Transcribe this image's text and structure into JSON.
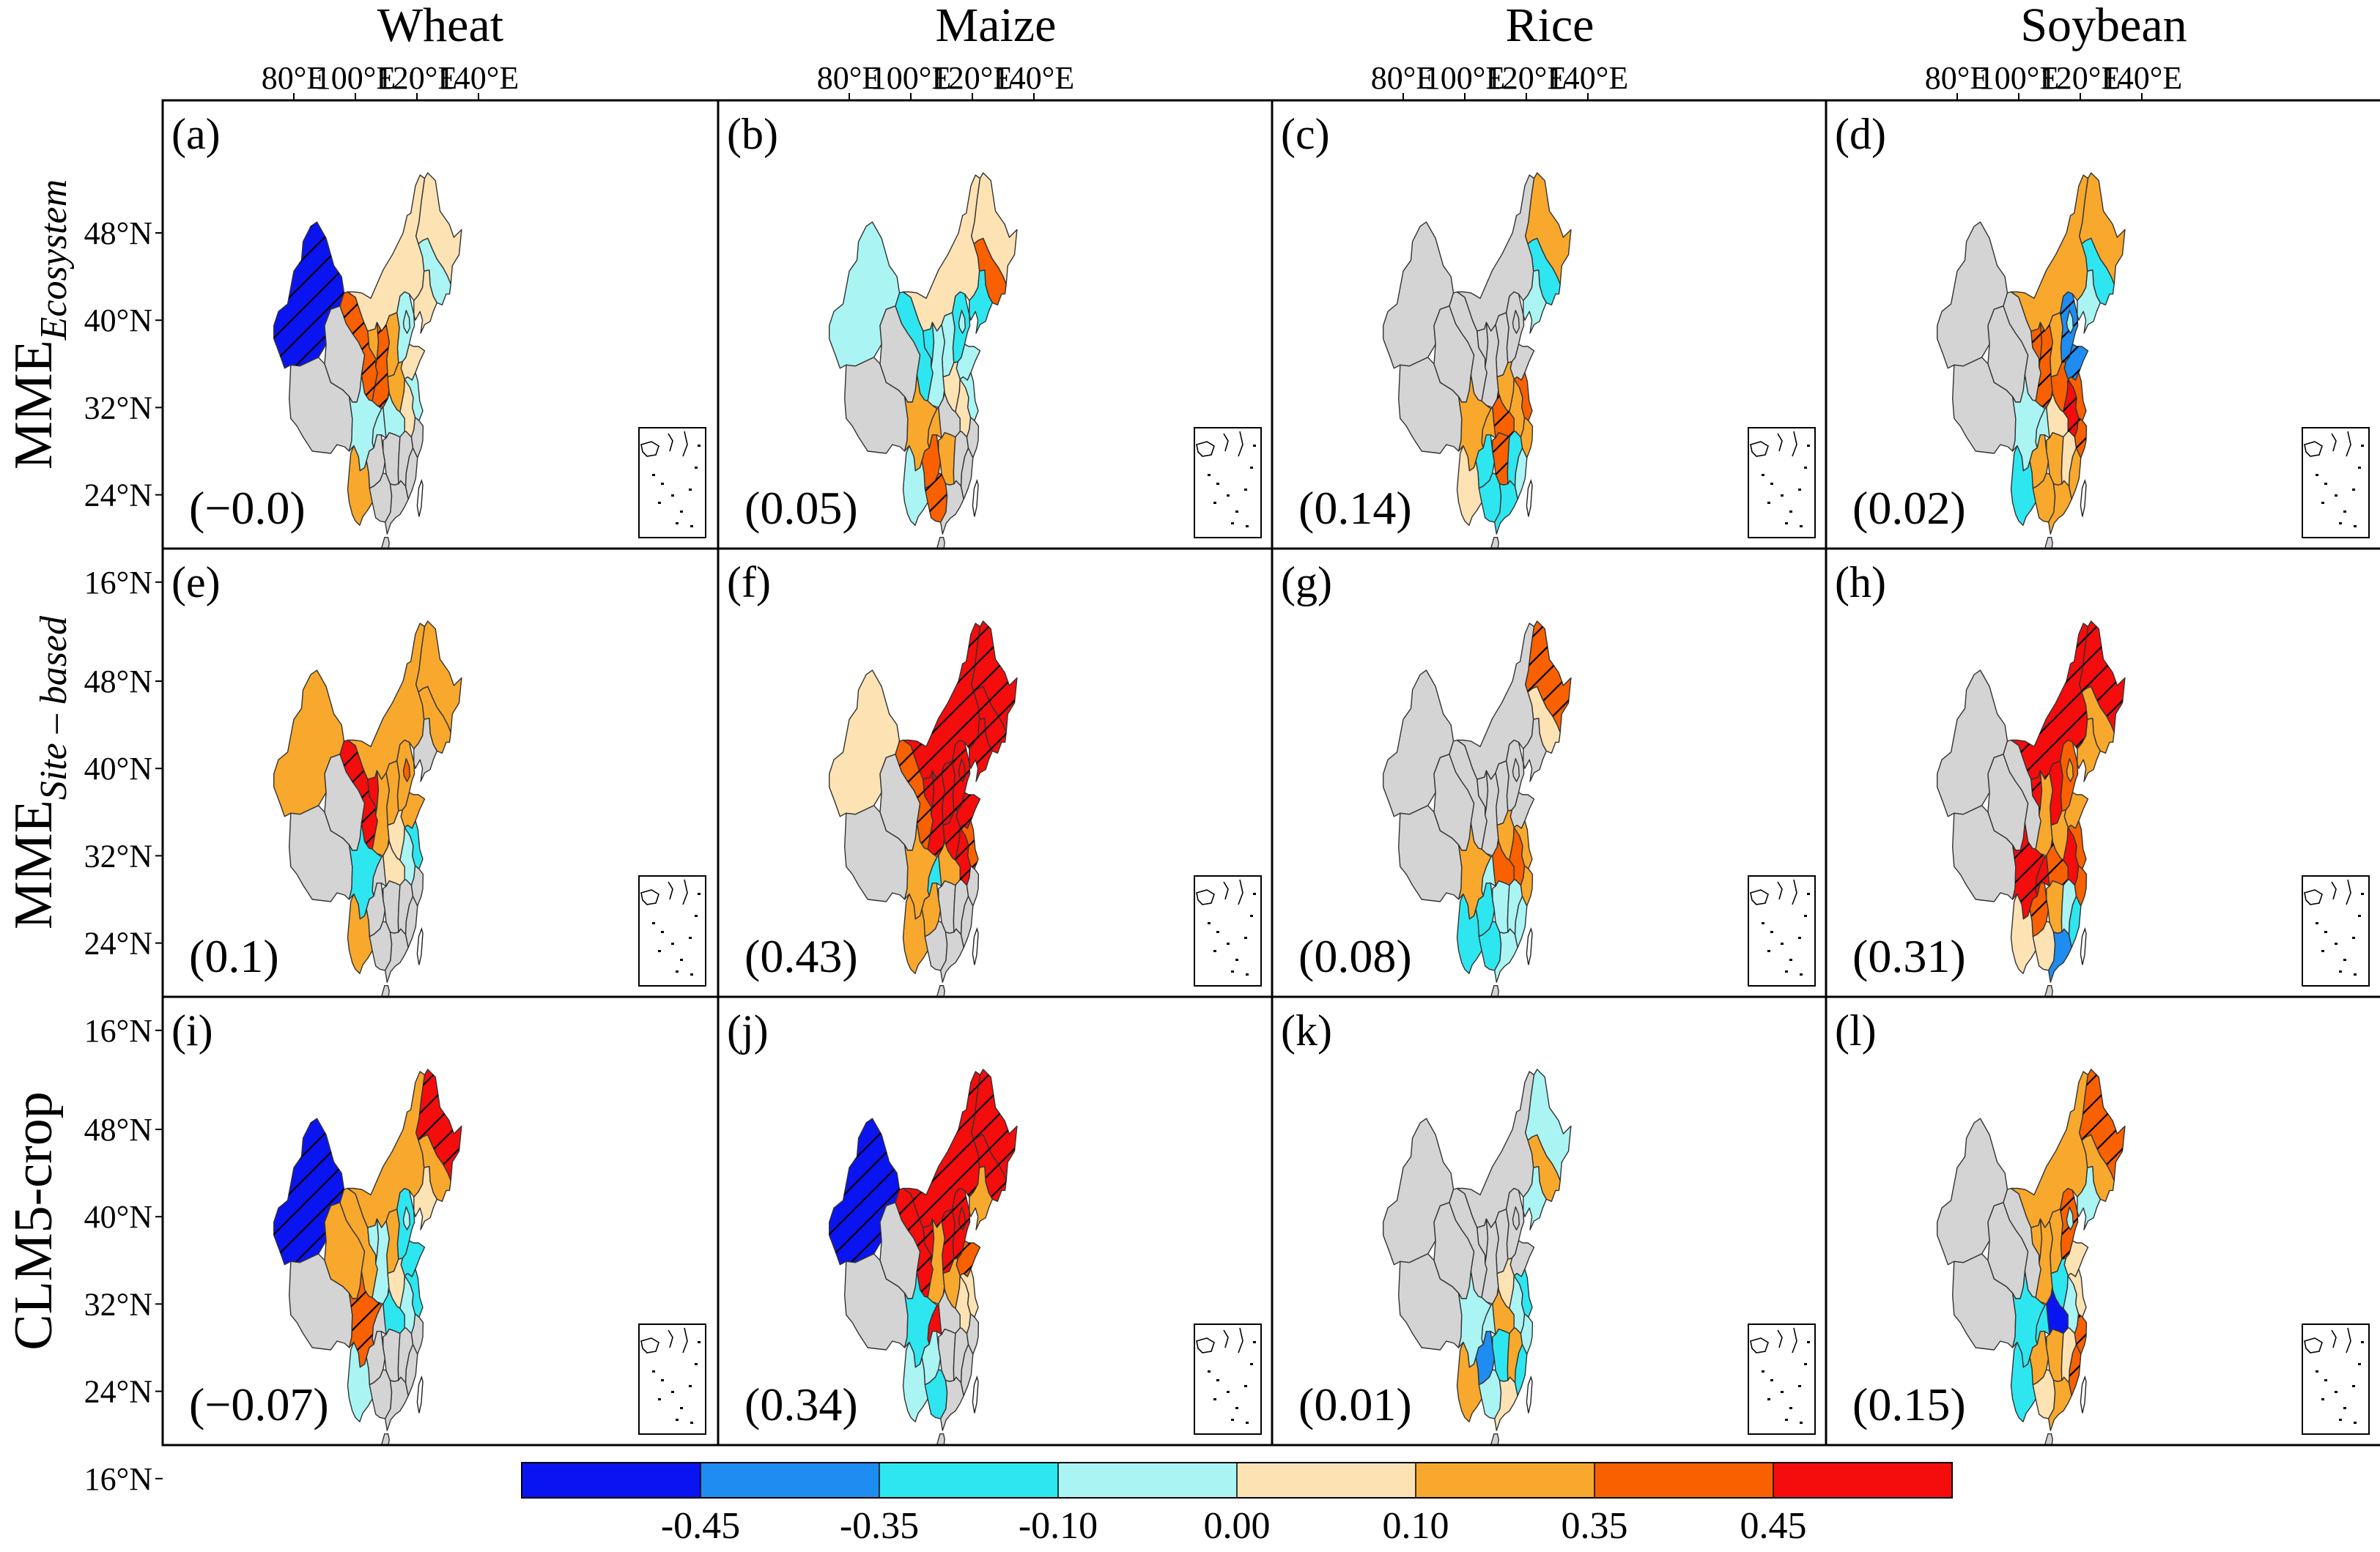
{
  "columns": [
    "Wheat",
    "Maize",
    "Rice",
    "Soybean"
  ],
  "rows": [
    {
      "label_main": "MME",
      "label_sub": "Ecosystem"
    },
    {
      "label_main": "MME",
      "label_sub": "Site – based"
    },
    {
      "label_main": "CLM5-crop",
      "label_sub": ""
    }
  ],
  "lon_ticks": [
    "80°E",
    "100°E",
    "120°E",
    "140°E"
  ],
  "lat_ticks": [
    "48°N",
    "40°N",
    "32°N",
    "24°N",
    "16°N"
  ],
  "panels": [
    {
      "letter": "(a)",
      "value": "(−0.0)"
    },
    {
      "letter": "(b)",
      "value": "(0.05)"
    },
    {
      "letter": "(c)",
      "value": "(0.14)"
    },
    {
      "letter": "(d)",
      "value": "(0.02)"
    },
    {
      "letter": "(e)",
      "value": "(0.1)"
    },
    {
      "letter": "(f)",
      "value": "(0.43)"
    },
    {
      "letter": "(g)",
      "value": "(0.08)"
    },
    {
      "letter": "(h)",
      "value": "(0.31)"
    },
    {
      "letter": "(i)",
      "value": "(−0.07)"
    },
    {
      "letter": "(j)",
      "value": "(0.34)"
    },
    {
      "letter": "(k)",
      "value": "(0.01)"
    },
    {
      "letter": "(l)",
      "value": "(0.15)"
    }
  ],
  "colorbar": {
    "colors": [
      "#0a14f0",
      "#1e8cf0",
      "#2ee6f0",
      "#aaf4f4",
      "#fde2b4",
      "#f8a82c",
      "#f86000",
      "#f50c0c"
    ],
    "tick_labels": [
      "-0.45",
      "-0.35",
      "-0.10",
      "0.00",
      "0.10",
      "0.35",
      "0.45"
    ]
  },
  "no_data_color": "#d4d4d4",
  "region_codes": [
    "XJ",
    "XZ",
    "QH",
    "GS",
    "NM",
    "NX",
    "SX",
    "SN",
    "HE",
    "BJ",
    "SD",
    "HA",
    "HB",
    "HN",
    "CQ",
    "SC",
    "GZ",
    "YN",
    "GX",
    "GD",
    "FJ",
    "JX",
    "ZJ",
    "AH",
    "JS",
    "HL",
    "JL",
    "LN"
  ],
  "maps": [
    {
      "XJ": [
        "#0a14f0",
        1
      ],
      "XZ": [
        "#d4d4d4",
        0
      ],
      "QH": [
        "#d4d4d4",
        0
      ],
      "GS": [
        "#f86000",
        1
      ],
      "NM": [
        "#fde2b4",
        0
      ],
      "NX": [
        "#f8a82c",
        0
      ],
      "SX": [
        "#f8a82c",
        0
      ],
      "SN": [
        "#f86000",
        1
      ],
      "HE": [
        "#aaf4f4",
        0
      ],
      "BJ": [
        "#aaf4f4",
        0
      ],
      "SD": [
        "#fde2b4",
        0
      ],
      "HA": [
        "#f8a82c",
        0
      ],
      "HB": [
        "#aaf4f4",
        0
      ],
      "HN": [
        "#d4d4d4",
        0
      ],
      "CQ": [
        "#aaf4f4",
        0
      ],
      "SC": [
        "#aaf4f4",
        0
      ],
      "GZ": [
        "#d4d4d4",
        0
      ],
      "YN": [
        "#f8a82c",
        0
      ],
      "GX": [
        "#d4d4d4",
        0
      ],
      "GD": [
        "#d4d4d4",
        0
      ],
      "FJ": [
        "#d4d4d4",
        0
      ],
      "JX": [
        "#d4d4d4",
        0
      ],
      "ZJ": [
        "#d4d4d4",
        0
      ],
      "AH": [
        "#fde2b4",
        0
      ],
      "JS": [
        "#aaf4f4",
        0
      ],
      "HL": [
        "#fde2b4",
        0
      ],
      "JL": [
        "#aaf4f4",
        0
      ],
      "LN": [
        "#fde2b4",
        0
      ]
    },
    {
      "XJ": [
        "#aaf4f4",
        0
      ],
      "XZ": [
        "#d4d4d4",
        0
      ],
      "QH": [
        "#d4d4d4",
        0
      ],
      "GS": [
        "#2ee6f0",
        0
      ],
      "NM": [
        "#fde2b4",
        0
      ],
      "NX": [
        "#2ee6f0",
        0
      ],
      "SX": [
        "#aaf4f4",
        0
      ],
      "SN": [
        "#aaf4f4",
        0
      ],
      "HE": [
        "#2ee6f0",
        0
      ],
      "BJ": [
        "#aaf4f4",
        0
      ],
      "SD": [
        "#aaf4f4",
        0
      ],
      "HA": [
        "#fde2b4",
        0
      ],
      "HB": [
        "#d4d4d4",
        0
      ],
      "HN": [
        "#f8a82c",
        0
      ],
      "CQ": [
        "#f8a82c",
        0
      ],
      "SC": [
        "#f8a82c",
        0
      ],
      "GZ": [
        "#f86000",
        0
      ],
      "YN": [
        "#aaf4f4",
        0
      ],
      "GX": [
        "#f86000",
        1
      ],
      "GD": [
        "#d4d4d4",
        0
      ],
      "FJ": [
        "#d4d4d4",
        0
      ],
      "JX": [
        "#d4d4d4",
        0
      ],
      "ZJ": [
        "#d4d4d4",
        0
      ],
      "AH": [
        "#fde2b4",
        0
      ],
      "JS": [
        "#aaf4f4",
        0
      ],
      "HL": [
        "#fde2b4",
        0
      ],
      "JL": [
        "#f86000",
        0
      ],
      "LN": [
        "#2ee6f0",
        0
      ]
    },
    {
      "XJ": [
        "#d4d4d4",
        0
      ],
      "XZ": [
        "#d4d4d4",
        0
      ],
      "QH": [
        "#d4d4d4",
        0
      ],
      "GS": [
        "#d4d4d4",
        0
      ],
      "NM": [
        "#d4d4d4",
        0
      ],
      "NX": [
        "#d4d4d4",
        0
      ],
      "SX": [
        "#d4d4d4",
        0
      ],
      "SN": [
        "#d4d4d4",
        0
      ],
      "HE": [
        "#d4d4d4",
        0
      ],
      "BJ": [
        "#d4d4d4",
        0
      ],
      "SD": [
        "#d4d4d4",
        0
      ],
      "HA": [
        "#f8a82c",
        0
      ],
      "HB": [
        "#f86000",
        1
      ],
      "HN": [
        "#f86000",
        1
      ],
      "CQ": [
        "#f8a82c",
        0
      ],
      "SC": [
        "#f8a82c",
        0
      ],
      "GZ": [
        "#2ee6f0",
        0
      ],
      "YN": [
        "#fde2b4",
        0
      ],
      "GX": [
        "#2ee6f0",
        0
      ],
      "GD": [
        "#2ee6f0",
        0
      ],
      "FJ": [
        "#aaf4f4",
        0
      ],
      "JX": [
        "#2ee6f0",
        0
      ],
      "ZJ": [
        "#f8a82c",
        0
      ],
      "AH": [
        "#f8a82c",
        0
      ],
      "JS": [
        "#f86000",
        0
      ],
      "HL": [
        "#f8a82c",
        0
      ],
      "JL": [
        "#2ee6f0",
        0
      ],
      "LN": [
        "#aaf4f4",
        0
      ]
    },
    {
      "XJ": [
        "#d4d4d4",
        0
      ],
      "XZ": [
        "#d4d4d4",
        0
      ],
      "QH": [
        "#d4d4d4",
        0
      ],
      "GS": [
        "#d4d4d4",
        0
      ],
      "NM": [
        "#f8a82c",
        0
      ],
      "NX": [
        "#f86000",
        1
      ],
      "SX": [
        "#f8a82c",
        0
      ],
      "SN": [
        "#f86000",
        1
      ],
      "HE": [
        "#1e8cf0",
        1
      ],
      "BJ": [
        "#aaf4f4",
        0
      ],
      "SD": [
        "#1e8cf0",
        1
      ],
      "HA": [
        "#f86000",
        0
      ],
      "HB": [
        "#fde2b4",
        0
      ],
      "HN": [
        "#f8a82c",
        0
      ],
      "CQ": [
        "#aaf4f4",
        0
      ],
      "SC": [
        "#aaf4f4",
        0
      ],
      "GZ": [
        "#f8a82c",
        0
      ],
      "YN": [
        "#2ee6f0",
        0
      ],
      "GX": [
        "#f8a82c",
        0
      ],
      "GD": [
        "#f8a82c",
        0
      ],
      "FJ": [
        "#f8a82c",
        0
      ],
      "JX": [
        "#fde2b4",
        0
      ],
      "ZJ": [
        "#f86000",
        1
      ],
      "AH": [
        "#f50c0c",
        1
      ],
      "JS": [
        "#f86000",
        0
      ],
      "HL": [
        "#f8a82c",
        0
      ],
      "JL": [
        "#2ee6f0",
        0
      ],
      "LN": [
        "#aaf4f4",
        0
      ]
    },
    {
      "XJ": [
        "#f8a82c",
        0
      ],
      "XZ": [
        "#d4d4d4",
        0
      ],
      "QH": [
        "#d4d4d4",
        0
      ],
      "GS": [
        "#f50c0c",
        1
      ],
      "NM": [
        "#f8a82c",
        0
      ],
      "NX": [
        "#f50c0c",
        0
      ],
      "SX": [
        "#f8a82c",
        0
      ],
      "SN": [
        "#f8a82c",
        0
      ],
      "HE": [
        "#f8a82c",
        0
      ],
      "BJ": [
        "#f86000",
        0
      ],
      "SD": [
        "#f8a82c",
        0
      ],
      "HA": [
        "#fde2b4",
        0
      ],
      "HB": [
        "#fde2b4",
        0
      ],
      "HN": [
        "#d4d4d4",
        0
      ],
      "CQ": [
        "#d4d4d4",
        0
      ],
      "SC": [
        "#2ee6f0",
        0
      ],
      "GZ": [
        "#d4d4d4",
        0
      ],
      "YN": [
        "#f8a82c",
        0
      ],
      "GX": [
        "#d4d4d4",
        0
      ],
      "GD": [
        "#d4d4d4",
        0
      ],
      "FJ": [
        "#d4d4d4",
        0
      ],
      "JX": [
        "#d4d4d4",
        0
      ],
      "ZJ": [
        "#d4d4d4",
        0
      ],
      "AH": [
        "#aaf4f4",
        0
      ],
      "JS": [
        "#2ee6f0",
        0
      ],
      "HL": [
        "#f8a82c",
        0
      ],
      "JL": [
        "#f8a82c",
        0
      ],
      "LN": [
        "#d4d4d4",
        0
      ]
    },
    {
      "XJ": [
        "#fde2b4",
        0
      ],
      "XZ": [
        "#d4d4d4",
        0
      ],
      "QH": [
        "#d4d4d4",
        0
      ],
      "GS": [
        "#f86000",
        1
      ],
      "NM": [
        "#f50c0c",
        1
      ],
      "NX": [
        "#f50c0c",
        1
      ],
      "SX": [
        "#f50c0c",
        1
      ],
      "SN": [
        "#f50c0c",
        1
      ],
      "HE": [
        "#f50c0c",
        1
      ],
      "BJ": [
        "#f50c0c",
        1
      ],
      "SD": [
        "#f50c0c",
        1
      ],
      "HA": [
        "#f50c0c",
        1
      ],
      "HB": [
        "#f8a82c",
        0
      ],
      "HN": [
        "#d4d4d4",
        0
      ],
      "CQ": [
        "#2ee6f0",
        0
      ],
      "SC": [
        "#f8a82c",
        0
      ],
      "GZ": [
        "#f8a82c",
        0
      ],
      "YN": [
        "#f8a82c",
        0
      ],
      "GX": [
        "#d4d4d4",
        0
      ],
      "GD": [
        "#d4d4d4",
        0
      ],
      "FJ": [
        "#d4d4d4",
        0
      ],
      "JX": [
        "#d4d4d4",
        0
      ],
      "ZJ": [
        "#d4d4d4",
        0
      ],
      "AH": [
        "#f50c0c",
        1
      ],
      "JS": [
        "#f86000",
        1
      ],
      "HL": [
        "#f50c0c",
        1
      ],
      "JL": [
        "#f50c0c",
        1
      ],
      "LN": [
        "#f50c0c",
        1
      ]
    },
    {
      "XJ": [
        "#d4d4d4",
        0
      ],
      "XZ": [
        "#d4d4d4",
        0
      ],
      "QH": [
        "#d4d4d4",
        0
      ],
      "GS": [
        "#d4d4d4",
        0
      ],
      "NM": [
        "#d4d4d4",
        0
      ],
      "NX": [
        "#d4d4d4",
        0
      ],
      "SX": [
        "#d4d4d4",
        0
      ],
      "SN": [
        "#d4d4d4",
        0
      ],
      "HE": [
        "#d4d4d4",
        0
      ],
      "BJ": [
        "#d4d4d4",
        0
      ],
      "SD": [
        "#d4d4d4",
        0
      ],
      "HA": [
        "#f8a82c",
        0
      ],
      "HB": [
        "#f86000",
        0
      ],
      "HN": [
        "#aaf4f4",
        0
      ],
      "CQ": [
        "#aaf4f4",
        0
      ],
      "SC": [
        "#f8a82c",
        0
      ],
      "GZ": [
        "#2ee6f0",
        0
      ],
      "YN": [
        "#2ee6f0",
        0
      ],
      "GX": [
        "#2ee6f0",
        0
      ],
      "GD": [
        "#aaf4f4",
        0
      ],
      "FJ": [
        "#aaf4f4",
        0
      ],
      "JX": [
        "#aaf4f4",
        0
      ],
      "ZJ": [
        "#f8a82c",
        0
      ],
      "AH": [
        "#f86000",
        0
      ],
      "JS": [
        "#f8a82c",
        0
      ],
      "HL": [
        "#f86000",
        1
      ],
      "JL": [
        "#fde2b4",
        0
      ],
      "LN": [
        "#d4d4d4",
        0
      ]
    },
    {
      "XJ": [
        "#d4d4d4",
        0
      ],
      "XZ": [
        "#d4d4d4",
        0
      ],
      "QH": [
        "#d4d4d4",
        0
      ],
      "GS": [
        "#d4d4d4",
        0
      ],
      "NM": [
        "#f50c0c",
        1
      ],
      "NX": [
        "#f50c0c",
        1
      ],
      "SX": [
        "#f50c0c",
        0
      ],
      "SN": [
        "#f8a82c",
        0
      ],
      "HE": [
        "#f86000",
        0
      ],
      "BJ": [
        "#f8a82c",
        0
      ],
      "SD": [
        "#f8a82c",
        0
      ],
      "HA": [
        "#f8a82c",
        0
      ],
      "HB": [
        "#f86000",
        1
      ],
      "HN": [
        "#f8a82c",
        0
      ],
      "CQ": [
        "#f50c0c",
        1
      ],
      "SC": [
        "#f50c0c",
        1
      ],
      "GZ": [
        "#f86000",
        1
      ],
      "YN": [
        "#fde2b4",
        0
      ],
      "GX": [
        "#fde2b4",
        0
      ],
      "GD": [
        "#1e8cf0",
        0
      ],
      "FJ": [
        "#2ee6f0",
        0
      ],
      "JX": [
        "#aaf4f4",
        0
      ],
      "ZJ": [
        "#f86000",
        0
      ],
      "AH": [
        "#f50c0c",
        0
      ],
      "JS": [
        "#f86000",
        0
      ],
      "HL": [
        "#f50c0c",
        1
      ],
      "JL": [
        "#f8a82c",
        0
      ],
      "LN": [
        "#f8a82c",
        0
      ]
    },
    {
      "XJ": [
        "#0a14f0",
        1
      ],
      "XZ": [
        "#d4d4d4",
        0
      ],
      "QH": [
        "#f8a82c",
        0
      ],
      "GS": [
        "#f8a82c",
        0
      ],
      "NM": [
        "#f8a82c",
        0
      ],
      "NX": [
        "#aaf4f4",
        0
      ],
      "SX": [
        "#f8a82c",
        0
      ],
      "SN": [
        "#aaf4f4",
        0
      ],
      "HE": [
        "#2ee6f0",
        0
      ],
      "BJ": [
        "#aaf4f4",
        0
      ],
      "SD": [
        "#2ee6f0",
        0
      ],
      "HA": [
        "#fde2b4",
        0
      ],
      "HB": [
        "#2ee6f0",
        0
      ],
      "HN": [
        "#d4d4d4",
        0
      ],
      "CQ": [
        "#d4d4d4",
        0
      ],
      "SC": [
        "#f86000",
        1
      ],
      "GZ": [
        "#d4d4d4",
        0
      ],
      "YN": [
        "#aaf4f4",
        0
      ],
      "GX": [
        "#d4d4d4",
        0
      ],
      "GD": [
        "#d4d4d4",
        0
      ],
      "FJ": [
        "#d4d4d4",
        0
      ],
      "JX": [
        "#d4d4d4",
        0
      ],
      "ZJ": [
        "#d4d4d4",
        0
      ],
      "AH": [
        "#aaf4f4",
        0
      ],
      "JS": [
        "#2ee6f0",
        0
      ],
      "HL": [
        "#f50c0c",
        1
      ],
      "JL": [
        "#f8a82c",
        0
      ],
      "LN": [
        "#fde2b4",
        0
      ]
    },
    {
      "XJ": [
        "#0a14f0",
        1
      ],
      "XZ": [
        "#d4d4d4",
        0
      ],
      "QH": [
        "#d4d4d4",
        0
      ],
      "GS": [
        "#f50c0c",
        1
      ],
      "NM": [
        "#f50c0c",
        1
      ],
      "NX": [
        "#f50c0c",
        1
      ],
      "SX": [
        "#f50c0c",
        1
      ],
      "SN": [
        "#f8a82c",
        0
      ],
      "HE": [
        "#f50c0c",
        1
      ],
      "BJ": [
        "#f50c0c",
        1
      ],
      "SD": [
        "#f86000",
        1
      ],
      "HA": [
        "#f8a82c",
        0
      ],
      "HB": [
        "#d4d4d4",
        0
      ],
      "HN": [
        "#d4d4d4",
        0
      ],
      "CQ": [
        "#f50c0c",
        0
      ],
      "SC": [
        "#2ee6f0",
        0
      ],
      "GZ": [
        "#aaf4f4",
        0
      ],
      "YN": [
        "#aaf4f4",
        0
      ],
      "GX": [
        "#2ee6f0",
        0
      ],
      "GD": [
        "#d4d4d4",
        0
      ],
      "FJ": [
        "#d4d4d4",
        0
      ],
      "JX": [
        "#d4d4d4",
        0
      ],
      "ZJ": [
        "#d4d4d4",
        0
      ],
      "AH": [
        "#fde2b4",
        0
      ],
      "JS": [
        "#fde2b4",
        0
      ],
      "HL": [
        "#f50c0c",
        1
      ],
      "JL": [
        "#f50c0c",
        1
      ],
      "LN": [
        "#f8a82c",
        0
      ]
    },
    {
      "XJ": [
        "#d4d4d4",
        0
      ],
      "XZ": [
        "#d4d4d4",
        0
      ],
      "QH": [
        "#d4d4d4",
        0
      ],
      "GS": [
        "#d4d4d4",
        0
      ],
      "NM": [
        "#d4d4d4",
        0
      ],
      "NX": [
        "#d4d4d4",
        0
      ],
      "SX": [
        "#d4d4d4",
        0
      ],
      "SN": [
        "#d4d4d4",
        0
      ],
      "HE": [
        "#d4d4d4",
        0
      ],
      "BJ": [
        "#d4d4d4",
        0
      ],
      "SD": [
        "#d4d4d4",
        0
      ],
      "HA": [
        "#fde2b4",
        0
      ],
      "HB": [
        "#f8a82c",
        0
      ],
      "HN": [
        "#2ee6f0",
        0
      ],
      "CQ": [
        "#aaf4f4",
        0
      ],
      "SC": [
        "#aaf4f4",
        0
      ],
      "GZ": [
        "#1e8cf0",
        0
      ],
      "YN": [
        "#f8a82c",
        0
      ],
      "GX": [
        "#aaf4f4",
        0
      ],
      "GD": [
        "#fde2b4",
        0
      ],
      "FJ": [
        "#2ee6f0",
        0
      ],
      "JX": [
        "#f8a82c",
        0
      ],
      "ZJ": [
        "#aaf4f4",
        0
      ],
      "AH": [
        "#aaf4f4",
        0
      ],
      "JS": [
        "#2ee6f0",
        0
      ],
      "HL": [
        "#aaf4f4",
        0
      ],
      "JL": [
        "#f8a82c",
        0
      ],
      "LN": [
        "#aaf4f4",
        0
      ]
    },
    {
      "XJ": [
        "#d4d4d4",
        0
      ],
      "XZ": [
        "#d4d4d4",
        0
      ],
      "QH": [
        "#d4d4d4",
        0
      ],
      "GS": [
        "#d4d4d4",
        0
      ],
      "NM": [
        "#f8a82c",
        0
      ],
      "NX": [
        "#f8a82c",
        0
      ],
      "SX": [
        "#f8a82c",
        0
      ],
      "SN": [
        "#f8a82c",
        0
      ],
      "HE": [
        "#f86000",
        1
      ],
      "BJ": [
        "#aaf4f4",
        0
      ],
      "SD": [
        "#fde2b4",
        0
      ],
      "HA": [
        "#2ee6f0",
        0
      ],
      "HB": [
        "#0a14f0",
        0
      ],
      "HN": [
        "#f8a82c",
        0
      ],
      "CQ": [
        "#2ee6f0",
        0
      ],
      "SC": [
        "#2ee6f0",
        0
      ],
      "GZ": [
        "#f8a82c",
        0
      ],
      "YN": [
        "#2ee6f0",
        0
      ],
      "GX": [
        "#fde2b4",
        0
      ],
      "GD": [
        "#f8a82c",
        0
      ],
      "FJ": [
        "#f86000",
        1
      ],
      "JX": [
        "#fde2b4",
        0
      ],
      "ZJ": [
        "#f86000",
        1
      ],
      "AH": [
        "#aaf4f4",
        0
      ],
      "JS": [
        "#fde2b4",
        0
      ],
      "HL": [
        "#f86000",
        1
      ],
      "JL": [
        "#f8a82c",
        0
      ],
      "LN": [
        "#aaf4f4",
        0
      ]
    }
  ]
}
